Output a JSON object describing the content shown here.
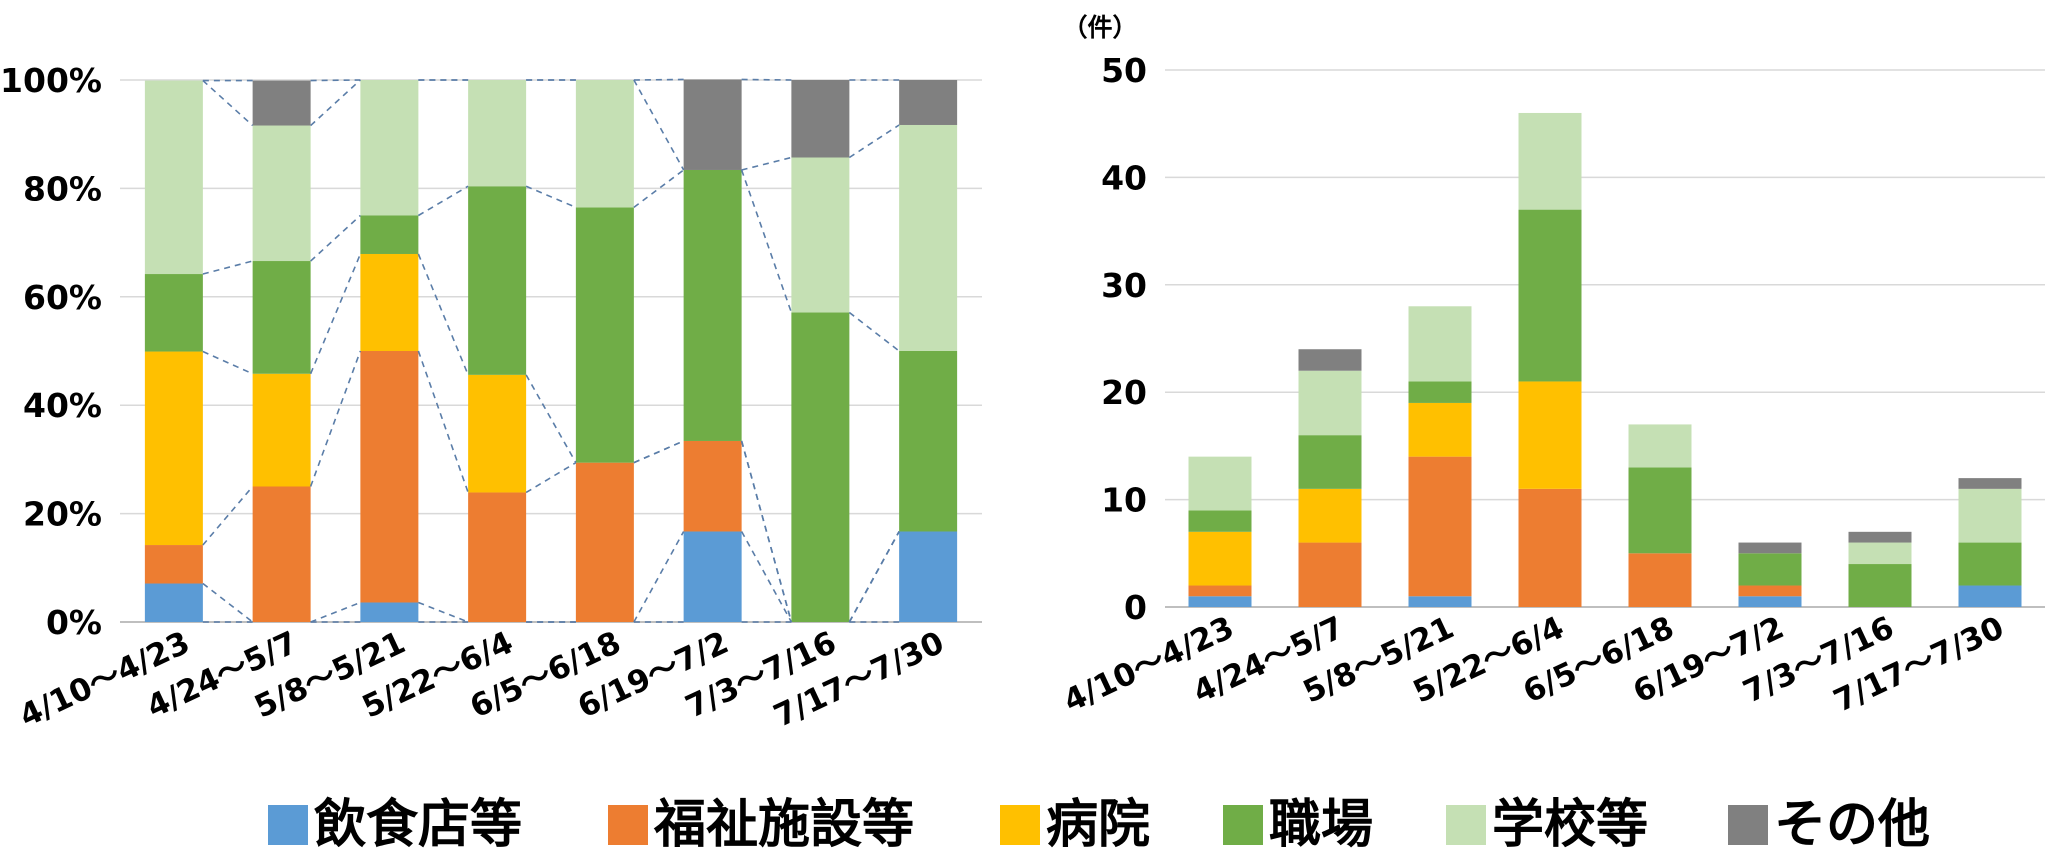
{
  "legend": {
    "items": [
      {
        "label": "飲食店等",
        "color": "#5B9BD5"
      },
      {
        "label": "福祉施設等",
        "color": "#ED7D31"
      },
      {
        "label": "病院",
        "color": "#FFC000"
      },
      {
        "label": "職場",
        "color": "#70AD47"
      },
      {
        "label": "学校等",
        "color": "#C5E0B4"
      },
      {
        "label": "その他",
        "color": "#808080"
      }
    ]
  },
  "chart_data": [
    {
      "type": "bar",
      "stacked": "percent",
      "categories": [
        "4/10～4/23",
        "4/24～5/7",
        "5/8～5/21",
        "5/22～6/4",
        "6/5～6/18",
        "6/19～7/2",
        "7/3～7/16",
        "7/17～7/30"
      ],
      "series": [
        {
          "name": "飲食店等",
          "values": [
            7.1,
            0,
            3.6,
            0,
            0,
            16.7,
            0,
            16.7
          ]
        },
        {
          "name": "福祉施設等",
          "values": [
            7.1,
            25.0,
            46.4,
            23.9,
            29.4,
            16.7,
            0,
            0
          ]
        },
        {
          "name": "病院",
          "values": [
            35.7,
            20.8,
            17.9,
            21.7,
            0,
            0,
            0,
            0
          ]
        },
        {
          "name": "職場",
          "values": [
            14.3,
            20.8,
            7.1,
            34.8,
            47.1,
            50.0,
            57.1,
            33.3
          ]
        },
        {
          "name": "学校等",
          "values": [
            35.7,
            25.0,
            25.0,
            19.6,
            23.5,
            0,
            28.6,
            41.7
          ]
        },
        {
          "name": "その他",
          "values": [
            0,
            8.3,
            0,
            0,
            0,
            16.7,
            14.3,
            8.3
          ]
        }
      ],
      "yticks": [
        "0%",
        "20%",
        "40%",
        "60%",
        "80%",
        "100%"
      ],
      "ylim": [
        0,
        100
      ],
      "series_lines": true,
      "grid": true,
      "legend_position": "bottom"
    },
    {
      "type": "bar",
      "stacked": true,
      "unit_label": "（件）",
      "categories": [
        "4/10～4/23",
        "4/24～5/7",
        "5/8～5/21",
        "5/22～6/4",
        "6/5～6/18",
        "6/19～7/2",
        "7/3～7/16",
        "7/17～7/30"
      ],
      "series": [
        {
          "name": "飲食店等",
          "values": [
            1,
            0,
            1,
            0,
            0,
            1,
            0,
            2
          ]
        },
        {
          "name": "福祉施設等",
          "values": [
            1,
            6,
            13,
            11,
            5,
            1,
            0,
            0
          ]
        },
        {
          "name": "病院",
          "values": [
            5,
            5,
            5,
            10,
            0,
            0,
            0,
            0
          ]
        },
        {
          "name": "職場",
          "values": [
            2,
            5,
            2,
            16,
            8,
            3,
            4,
            4
          ]
        },
        {
          "name": "学校等",
          "values": [
            5,
            6,
            7,
            9,
            4,
            0,
            2,
            5
          ]
        },
        {
          "name": "その他",
          "values": [
            0,
            2,
            0,
            0,
            0,
            1,
            1,
            1
          ]
        }
      ],
      "yticks": [
        "0",
        "10",
        "20",
        "30",
        "40",
        "50"
      ],
      "ylim": [
        0,
        50
      ],
      "grid": true,
      "legend_position": "bottom"
    }
  ]
}
